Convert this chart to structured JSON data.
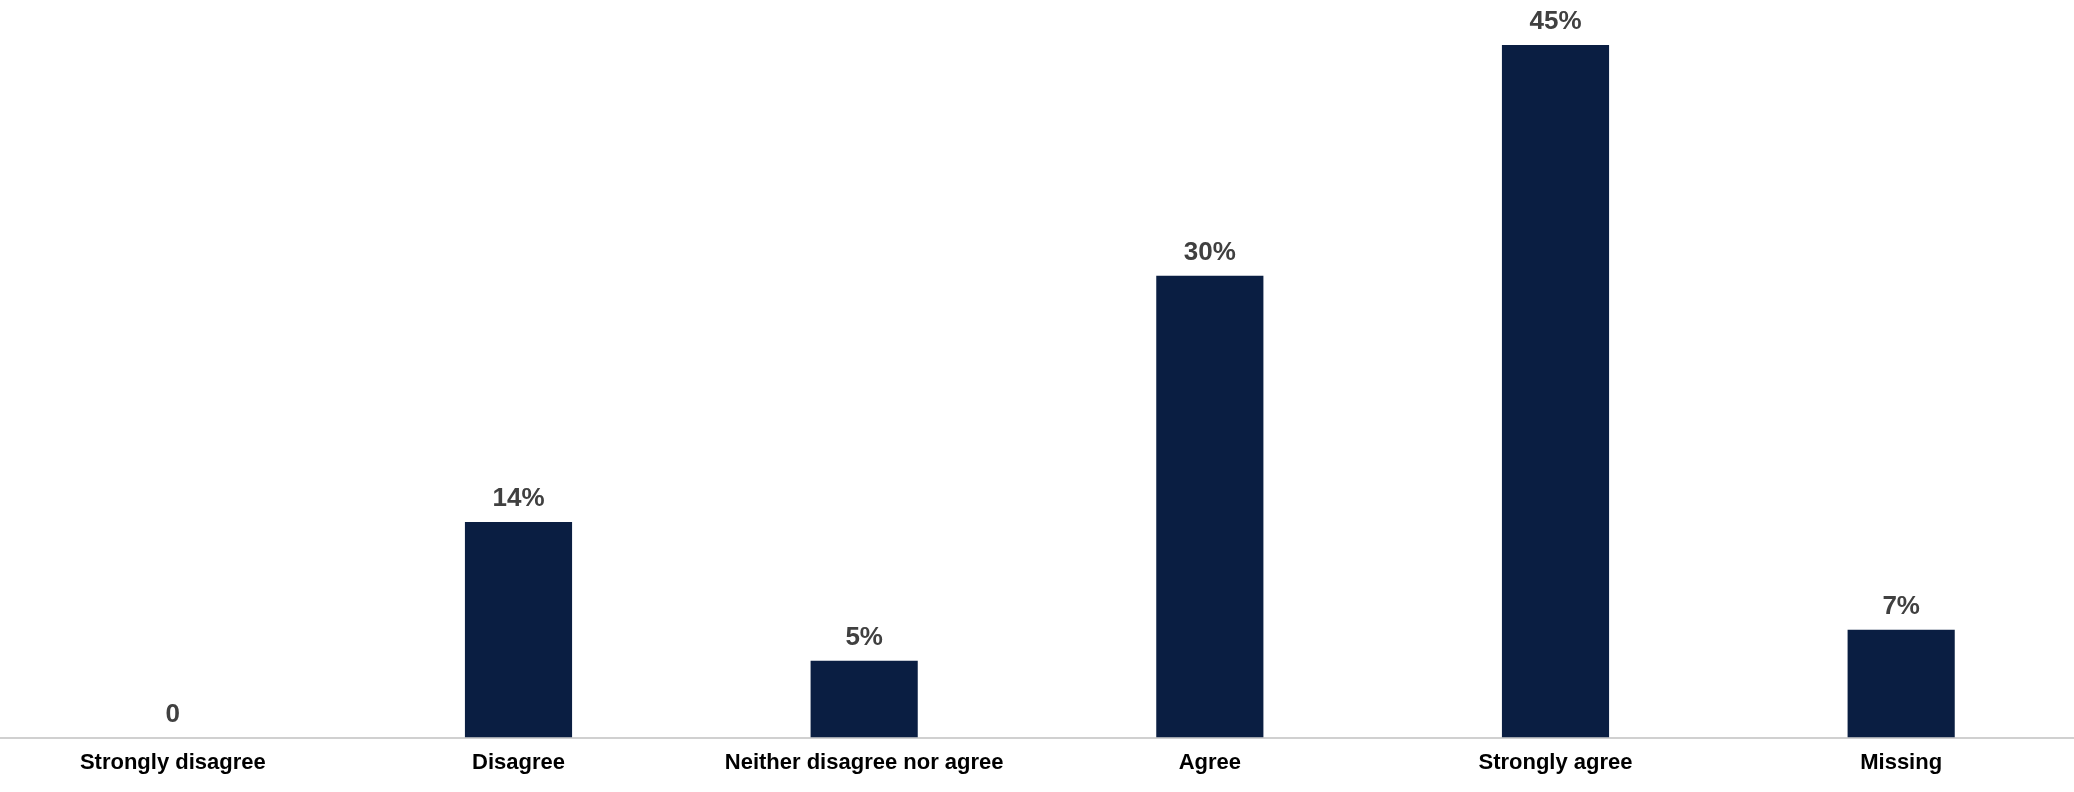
{
  "chart_data": {
    "type": "bar",
    "categories": [
      "Strongly disagree",
      "Disagree",
      "Neither disagree nor agree",
      "Agree",
      "Strongly agree",
      "Missing"
    ],
    "values": [
      0,
      14,
      5,
      30,
      45,
      7
    ],
    "value_labels": [
      "0",
      "14%",
      "5%",
      "30%",
      "45%",
      "7%"
    ],
    "color": "#0a1e42",
    "grid": false,
    "legend": false
  }
}
